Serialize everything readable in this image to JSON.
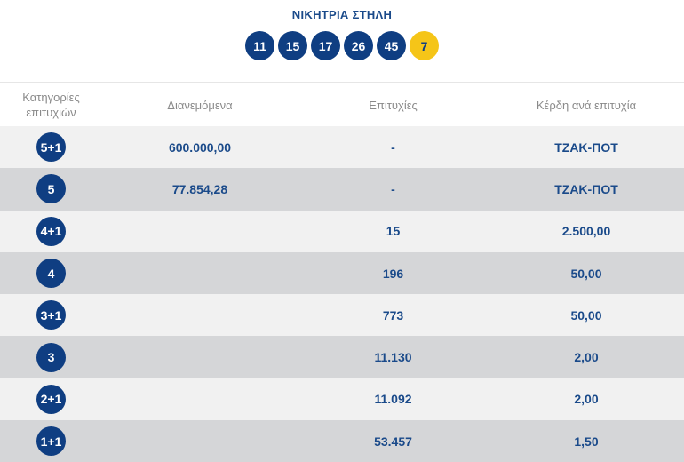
{
  "title": "ΝΙΚΗΤΡΙΑ ΣΤΗΛΗ",
  "numbers": [
    "11",
    "15",
    "17",
    "26",
    "45"
  ],
  "bonus": "7",
  "columns": {
    "category": "Κατηγορίες επιτυχιών",
    "distributed": "Διανεμόμενα",
    "winners": "Επιτυχίες",
    "prize": "Κέρδη ανά επιτυχία"
  },
  "rows": [
    {
      "category": "5+1",
      "distributed": "600.000,00",
      "winners": "-",
      "prize": "ΤΖΑΚ-ΠΟΤ"
    },
    {
      "category": "5",
      "distributed": "77.854,28",
      "winners": "-",
      "prize": "ΤΖΑΚ-ΠΟΤ"
    },
    {
      "category": "4+1",
      "distributed": "",
      "winners": "15",
      "prize": "2.500,00"
    },
    {
      "category": "4",
      "distributed": "",
      "winners": "196",
      "prize": "50,00"
    },
    {
      "category": "3+1",
      "distributed": "",
      "winners": "773",
      "prize": "50,00"
    },
    {
      "category": "3",
      "distributed": "",
      "winners": "11.130",
      "prize": "2,00"
    },
    {
      "category": "2+1",
      "distributed": "",
      "winners": "11.092",
      "prize": "2,00"
    },
    {
      "category": "1+1",
      "distributed": "",
      "winners": "53.457",
      "prize": "1,50"
    }
  ],
  "colors": {
    "ball": "#0f3e82",
    "bonus_ball": "#f5c518",
    "row_light": "#f1f1f1",
    "row_dark": "#d5d6d8",
    "text": "#1a4a8a"
  }
}
